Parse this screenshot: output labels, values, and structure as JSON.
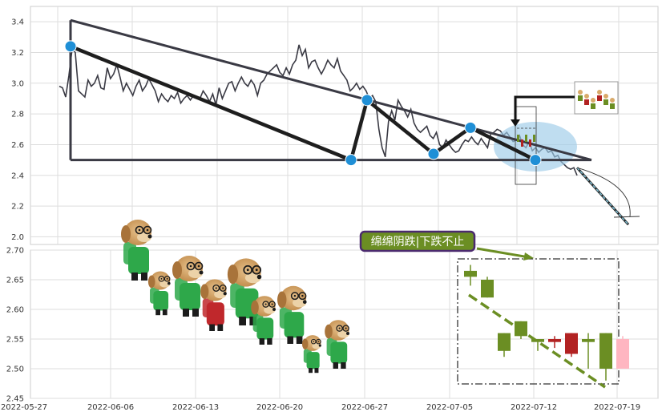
{
  "chart_data": [
    {
      "type": "line",
      "panel": "top",
      "ylim": [
        1.95,
        3.5
      ],
      "y_ticks": [
        "2.0",
        "2.2",
        "2.4",
        "2.6",
        "2.8",
        "3.0",
        "3.2",
        "3.4"
      ],
      "y_tick_values": [
        2.0,
        2.2,
        2.4,
        2.6,
        2.8,
        3.0,
        3.2,
        3.4
      ],
      "grid": true,
      "line_color": "#3a3a44",
      "price_series": [
        2.98,
        2.97,
        2.91,
        3.05,
        3.22,
        3.2,
        2.95,
        2.93,
        2.91,
        3.02,
        2.98,
        3.0,
        3.05,
        2.97,
        2.96,
        3.1,
        3.03,
        3.06,
        3.12,
        3.04,
        2.95,
        3.0,
        2.96,
        2.92,
        2.98,
        3.02,
        2.95,
        2.98,
        3.03,
        2.99,
        2.95,
        2.88,
        2.93,
        2.9,
        2.88,
        2.92,
        2.9,
        2.94,
        2.87,
        2.9,
        2.92,
        2.89,
        2.92,
        2.91,
        2.9,
        2.95,
        2.92,
        2.88,
        2.93,
        2.86,
        2.97,
        2.9,
        2.95,
        3.0,
        3.01,
        2.95,
        3.0,
        3.04,
        3.0,
        2.98,
        3.02,
        2.99,
        2.92,
        3.0,
        3.02,
        3.06,
        3.08,
        3.1,
        3.12,
        3.07,
        3.05,
        3.1,
        3.06,
        3.12,
        3.15,
        3.25,
        3.18,
        3.22,
        3.1,
        3.14,
        3.15,
        3.1,
        3.06,
        3.1,
        3.15,
        3.12,
        3.1,
        3.16,
        3.08,
        3.05,
        3.02,
        2.95,
        2.97,
        3.0,
        2.96,
        2.98,
        2.95,
        2.9,
        2.92,
        2.88,
        2.7,
        2.58,
        2.52,
        2.75,
        2.82,
        2.76,
        2.89,
        2.85,
        2.82,
        2.78,
        2.83,
        2.74,
        2.7,
        2.68,
        2.7,
        2.72,
        2.66,
        2.64,
        2.68,
        2.6,
        2.58,
        2.63,
        2.6,
        2.57,
        2.55,
        2.56,
        2.6,
        2.63,
        2.62,
        2.65,
        2.62,
        2.6,
        2.64,
        2.61,
        2.58,
        2.67,
        2.68,
        2.7,
        2.69,
        2.66,
        2.68,
        2.65,
        2.62,
        2.63,
        2.66,
        2.6,
        2.58,
        2.62,
        2.56,
        2.58,
        2.55,
        2.57,
        2.58,
        2.55,
        2.56,
        2.52,
        2.53,
        2.49,
        2.47,
        2.45,
        2.44,
        2.45,
        2.4
      ],
      "trend_lines": [
        {
          "color": "#3a3a44",
          "points": [
            [
              3.41,
              3.41
            ],
            [
              2.5,
              2.5
            ]
          ]
        }
      ],
      "swing_points": [
        3.24,
        2.5,
        2.89,
        2.54,
        2.71,
        2.5
      ],
      "projection": {
        "from": 2.45,
        "to": 2.08,
        "color": "#7ab8cc"
      },
      "annotations": []
    },
    {
      "type": "candlestick",
      "panel": "bottom",
      "ylim": [
        2.45,
        2.7
      ],
      "y_ticks": [
        "2.45",
        "2.50",
        "2.55",
        "2.60",
        "2.65",
        "2.70"
      ],
      "y_tick_values": [
        2.45,
        2.5,
        2.55,
        2.6,
        2.65,
        2.7
      ],
      "x_ticks": [
        "2022-05-27",
        "2022-06-06",
        "2022-06-13",
        "2022-06-20",
        "2022-06-27",
        "2022-07-05",
        "2022-07-12",
        "2022-07-19"
      ],
      "grid": true,
      "candles": [
        {
          "open": 2.655,
          "high": 2.675,
          "low": 2.64,
          "close": 2.665,
          "color": "#6b8e23"
        },
        {
          "open": 2.65,
          "high": 2.655,
          "low": 2.62,
          "close": 2.62,
          "color": "#6b8e23"
        },
        {
          "open": 2.56,
          "high": 2.56,
          "low": 2.52,
          "close": 2.53,
          "color": "#6b8e23"
        },
        {
          "open": 2.58,
          "high": 2.58,
          "low": 2.55,
          "close": 2.555,
          "color": "#6b8e23"
        },
        {
          "open": 2.55,
          "high": 2.55,
          "low": 2.53,
          "close": 2.545,
          "color": "#6b8e23"
        },
        {
          "open": 2.55,
          "high": 2.555,
          "low": 2.535,
          "close": 2.545,
          "color": "#b22222"
        },
        {
          "open": 2.56,
          "high": 2.56,
          "low": 2.52,
          "close": 2.525,
          "color": "#b22222"
        },
        {
          "open": 2.55,
          "high": 2.56,
          "low": 2.5,
          "close": 2.545,
          "color": "#6b8e23"
        },
        {
          "open": 2.56,
          "high": 2.56,
          "low": 2.48,
          "close": 2.5,
          "color": "#6b8e23"
        },
        {
          "open": 2.55,
          "high": 2.555,
          "low": 2.5,
          "close": 2.5,
          "color": "#ffb6c1"
        }
      ],
      "annotations": [
        {
          "text": "绵绵阴跌|下跌不止"
        }
      ]
    }
  ]
}
